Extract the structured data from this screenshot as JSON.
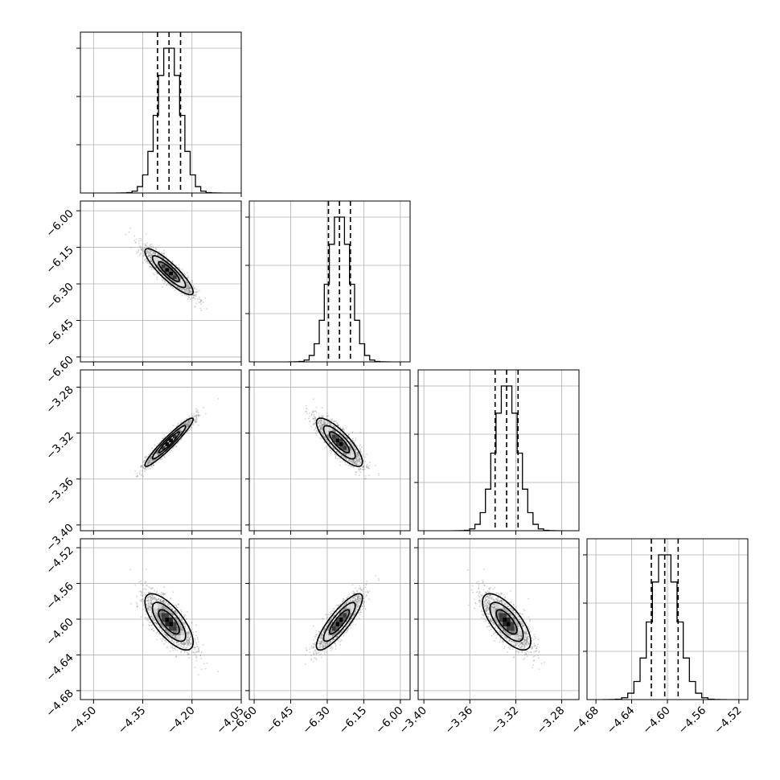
{
  "chart_data": {
    "type": "corner",
    "n_params": 4,
    "params": [
      {
        "range": [
          -4.54,
          -4.05
        ],
        "ticks": [
          -4.5,
          -4.35,
          -4.2,
          -4.05
        ],
        "tick_labels": [
          "−4.50",
          "−4.35",
          "−4.20",
          "−4.05"
        ],
        "quantiles": [
          -4.305,
          -4.27,
          -4.235
        ],
        "mean": -4.27,
        "sd": 0.035
      },
      {
        "range": [
          -6.62,
          -5.96
        ],
        "ticks": [
          -6.6,
          -6.45,
          -6.3,
          -6.15,
          -6.0
        ],
        "tick_labels": [
          "−6.60",
          "−6.45",
          "−6.30",
          "−6.15",
          "−6.00"
        ],
        "quantiles": [
          -6.295,
          -6.25,
          -6.205
        ],
        "mean": -6.25,
        "sd": 0.045
      },
      {
        "range": [
          -3.405,
          -3.265
        ],
        "ticks": [
          -3.4,
          -3.36,
          -3.32,
          -3.28
        ],
        "tick_labels": [
          "−3.40",
          "−3.36",
          "−3.32",
          "−3.28"
        ],
        "quantiles": [
          -3.338,
          -3.328,
          -3.318
        ],
        "mean": -3.328,
        "sd": 0.01
      },
      {
        "range": [
          -4.69,
          -4.51
        ],
        "ticks": [
          -4.68,
          -4.64,
          -4.6,
          -4.56,
          -4.52
        ],
        "tick_labels": [
          "−4.68",
          "−4.64",
          "−4.60",
          "−4.56",
          "−4.52"
        ],
        "quantiles": [
          -4.618,
          -4.603,
          -4.588
        ],
        "mean": -4.603,
        "sd": 0.015
      }
    ],
    "correlations": [
      {
        "i": 1,
        "j": 0,
        "rho": -0.88
      },
      {
        "i": 2,
        "j": 0,
        "rho": 0.95
      },
      {
        "i": 2,
        "j": 1,
        "rho": -0.82
      },
      {
        "i": 3,
        "j": 0,
        "rho": -0.72
      },
      {
        "i": 3,
        "j": 1,
        "rho": 0.85
      },
      {
        "i": 3,
        "j": 2,
        "rho": -0.7
      }
    ],
    "histogram_bins": 20,
    "contour_levels": 3,
    "grid": true,
    "axis_labels": [
      "",
      "",
      "",
      ""
    ],
    "title": ""
  }
}
